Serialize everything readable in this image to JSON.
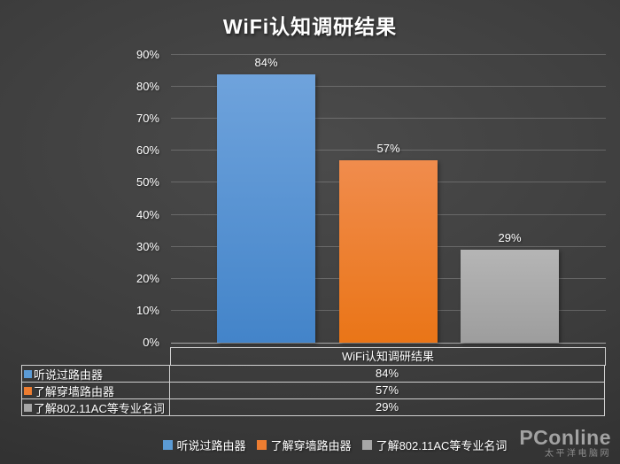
{
  "title": "WiFi认知调研结果",
  "chart_data": {
    "type": "bar",
    "title": "WiFi认知调研结果",
    "categories": [
      "听说过路由器",
      "了解穿墙路由器",
      "了解802.11AC等专业名词"
    ],
    "values": [
      84,
      57,
      29
    ],
    "value_labels": [
      "84%",
      "57%",
      "29%"
    ],
    "unit": "%",
    "ylim": [
      0,
      90
    ],
    "ytick_interval": 10,
    "ytick_labels": [
      "0%",
      "10%",
      "20%",
      "30%",
      "40%",
      "50%",
      "60%",
      "70%",
      "80%",
      "90%"
    ],
    "grid": true,
    "legend_position": "bottom",
    "series_colors": [
      "#5B9BD5",
      "#ED7D31",
      "#A6A6A6"
    ],
    "series_gradients": [
      [
        "#6FA3DC",
        "#4384C9"
      ],
      [
        "#F08C4D",
        "#EA7517"
      ],
      [
        "#B5B5B5",
        "#9D9D9D"
      ]
    ]
  },
  "table": {
    "header": "WiFi认知调研结果",
    "rows": [
      {
        "label": "听说过路由器",
        "value": "84%",
        "marker_color": "#5B9BD5"
      },
      {
        "label": "了解穿墙路由器",
        "value": "57%",
        "marker_color": "#ED7D31"
      },
      {
        "label": "了解802.11AC等专业名词",
        "value": "29%",
        "marker_color": "#A6A6A6"
      }
    ]
  },
  "legend": {
    "items": [
      {
        "label": "听说过路由器",
        "color": "#5B9BD5"
      },
      {
        "label": "了解穿墙路由器",
        "color": "#ED7D31"
      },
      {
        "label": "了解802.11AC等专业名词",
        "color": "#A6A6A6"
      }
    ]
  },
  "watermark": {
    "brand": "PConline",
    "subtitle": "太平洋电脑网"
  }
}
